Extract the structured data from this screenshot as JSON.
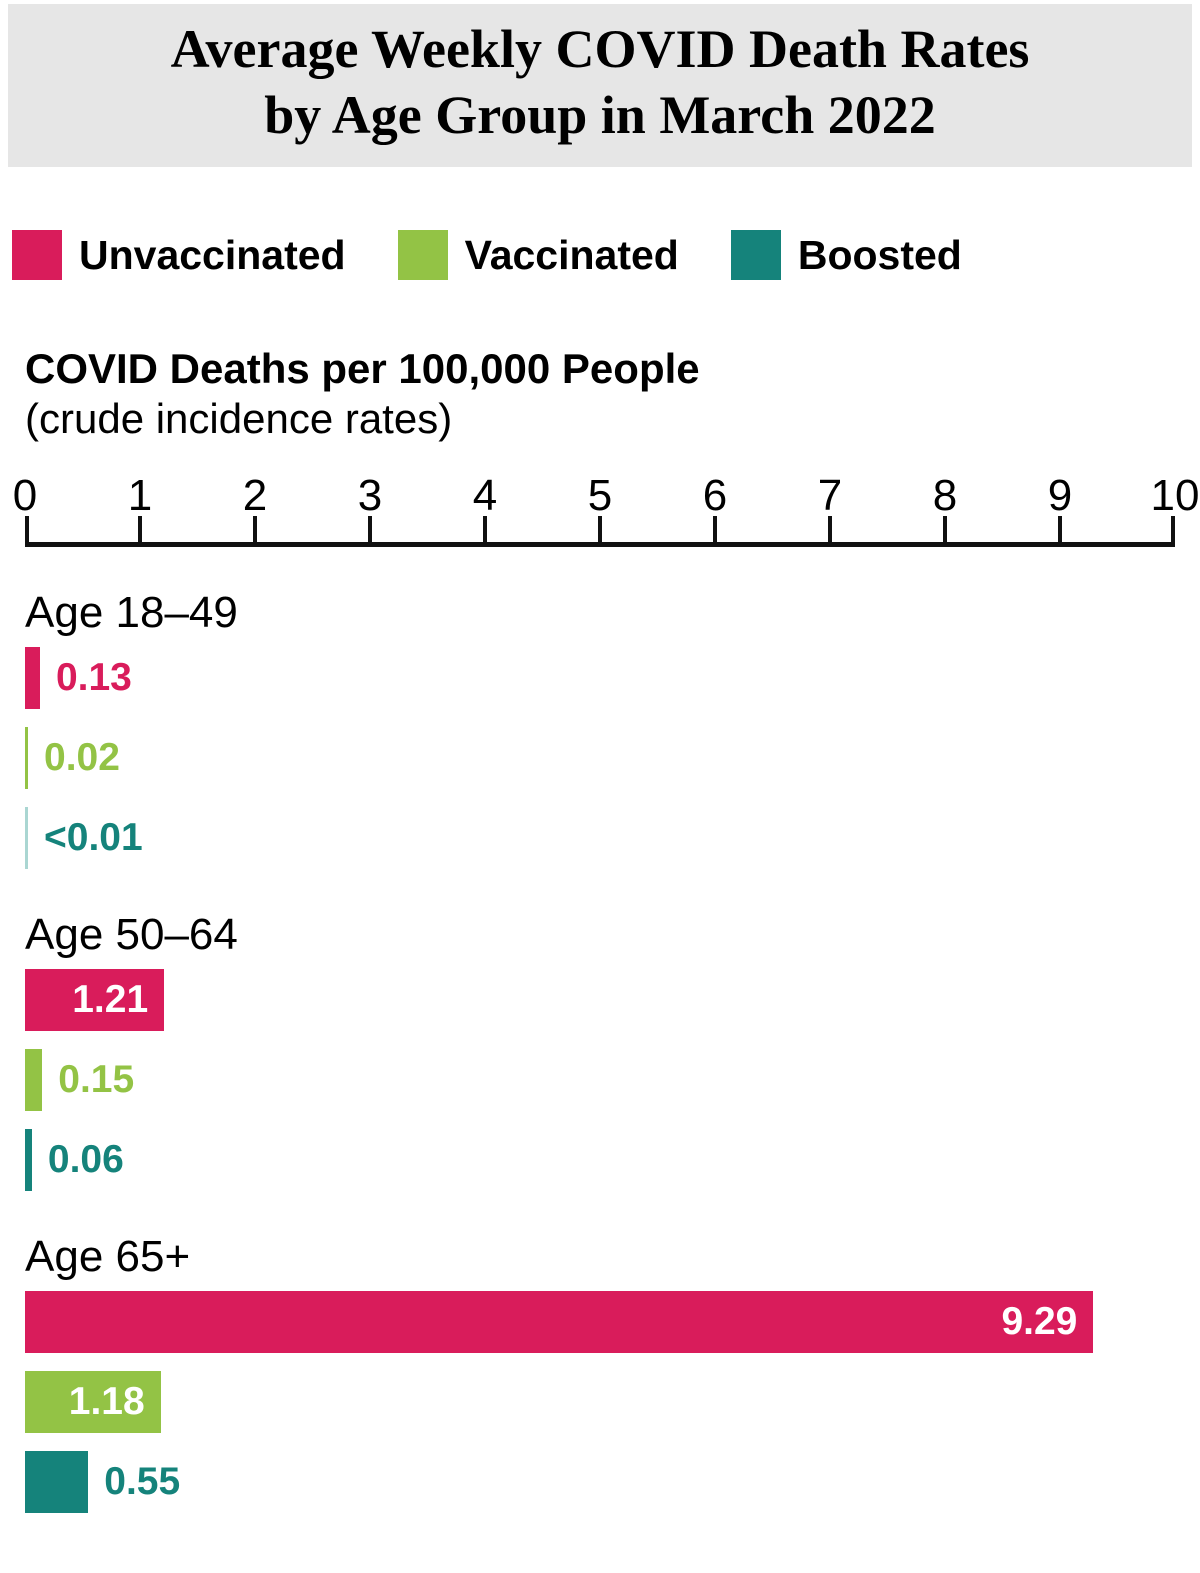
{
  "title": {
    "line1": "Average Weekly COVID Death Rates",
    "line2": "by Age Group in March 2022"
  },
  "legend": [
    {
      "label": "Unvaccinated",
      "color": "#d91c5b"
    },
    {
      "label": "Vaccinated",
      "color": "#93c345"
    },
    {
      "label": "Boosted",
      "color": "#15837b"
    }
  ],
  "axis_title": {
    "bold": "COVID Deaths per 100,000 People",
    "sub": "(crude incidence rates)"
  },
  "colors": {
    "unvaccinated": "#d91c5b",
    "vaccinated": "#93c345",
    "boosted": "#15837b",
    "boosted_trace": "#aad6d2",
    "header_background": "#e6e6e6",
    "axis": "#111111"
  },
  "chart_data": {
    "type": "bar",
    "orientation": "horizontal",
    "title": "Average Weekly COVID Death Rates by Age Group in March 2022",
    "xlabel": "COVID Deaths per 100,000 People (crude incidence rates)",
    "xlim": [
      0,
      10
    ],
    "ticks": [
      0,
      1,
      2,
      3,
      4,
      5,
      6,
      7,
      8,
      9,
      10
    ],
    "grid": false,
    "legend_position": "top",
    "categories": [
      "Age 18–49",
      "Age 50–64",
      "Age 65+"
    ],
    "series": [
      {
        "name": "Unvaccinated",
        "values": [
          0.13,
          1.21,
          9.29
        ],
        "color": "#d91c5b"
      },
      {
        "name": "Vaccinated",
        "values": [
          0.02,
          0.15,
          1.18
        ],
        "color": "#93c345"
      },
      {
        "name": "Boosted",
        "values": [
          0.005,
          0.06,
          0.55
        ],
        "color": "#15837b"
      }
    ],
    "groups": [
      {
        "category": "Age 18–49",
        "bars": [
          {
            "series": "Unvaccinated",
            "value": 0.13,
            "label": "0.13",
            "color": "#d91c5b",
            "label_inside": false
          },
          {
            "series": "Vaccinated",
            "value": 0.02,
            "label": "0.02",
            "color": "#93c345",
            "label_inside": false
          },
          {
            "series": "Boosted",
            "value": 0.005,
            "label": "<0.01",
            "color": "#15837b",
            "bar_color": "#aad6d2",
            "label_inside": false
          }
        ]
      },
      {
        "category": "Age 50–64",
        "bars": [
          {
            "series": "Unvaccinated",
            "value": 1.21,
            "label": "1.21",
            "color": "#d91c5b",
            "label_inside": true
          },
          {
            "series": "Vaccinated",
            "value": 0.15,
            "label": "0.15",
            "color": "#93c345",
            "label_inside": false
          },
          {
            "series": "Boosted",
            "value": 0.06,
            "label": "0.06",
            "color": "#15837b",
            "label_inside": false
          }
        ]
      },
      {
        "category": "Age 65+",
        "bars": [
          {
            "series": "Unvaccinated",
            "value": 9.29,
            "label": "9.29",
            "color": "#d91c5b",
            "label_inside": true
          },
          {
            "series": "Vaccinated",
            "value": 1.18,
            "label": "1.18",
            "color": "#93c345",
            "label_inside": true
          },
          {
            "series": "Boosted",
            "value": 0.55,
            "label": "0.55",
            "color": "#15837b",
            "label_inside": false
          }
        ]
      }
    ]
  }
}
